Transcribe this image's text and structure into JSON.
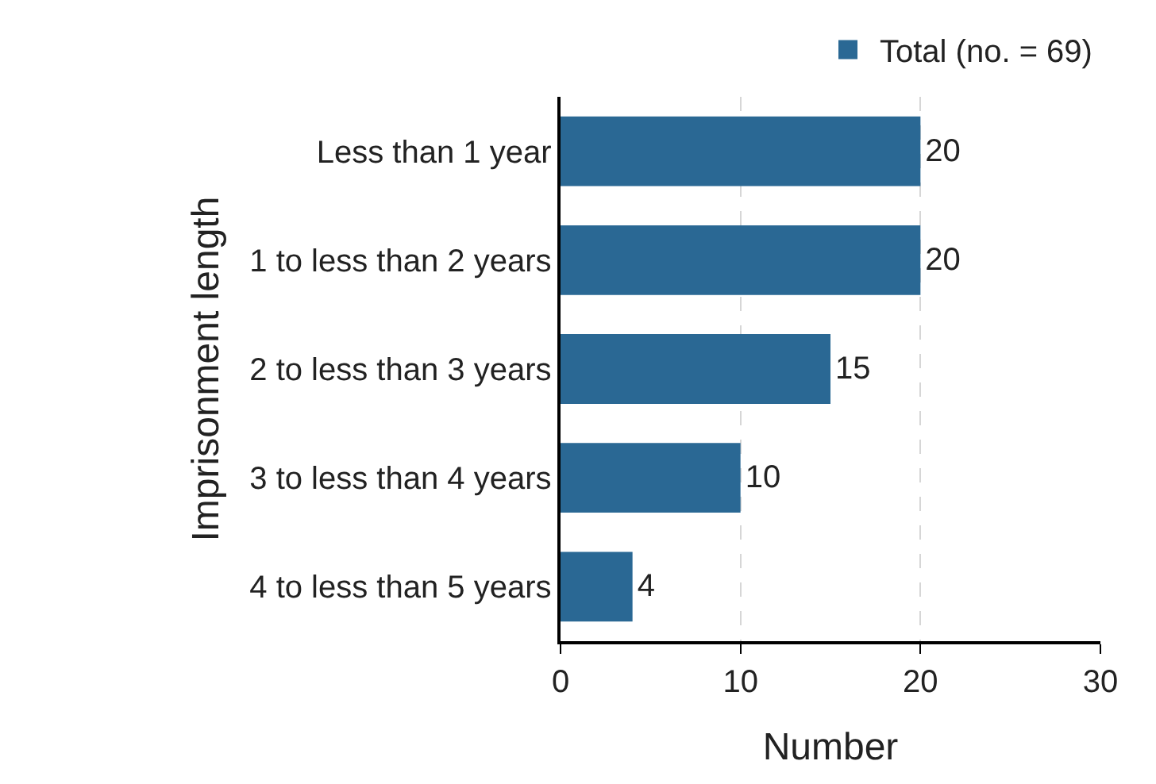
{
  "chart_data": {
    "type": "bar",
    "orientation": "horizontal",
    "categories": [
      "Less than 1 year",
      "1 to less than 2 years",
      "2 to less than 3 years",
      "3 to less than 4 years",
      "4 to less than 5 years"
    ],
    "series": [
      {
        "name": "Total (no. = 69)",
        "color": "#2a6894",
        "values": [
          20,
          20,
          15,
          10,
          4
        ]
      }
    ],
    "xlabel": "Number",
    "ylabel": "Imprisonment length",
    "xlim": [
      0,
      30
    ],
    "xticks": [
      0,
      10,
      20,
      30
    ],
    "grid": "x",
    "legend": "top right",
    "data_labels": true
  }
}
